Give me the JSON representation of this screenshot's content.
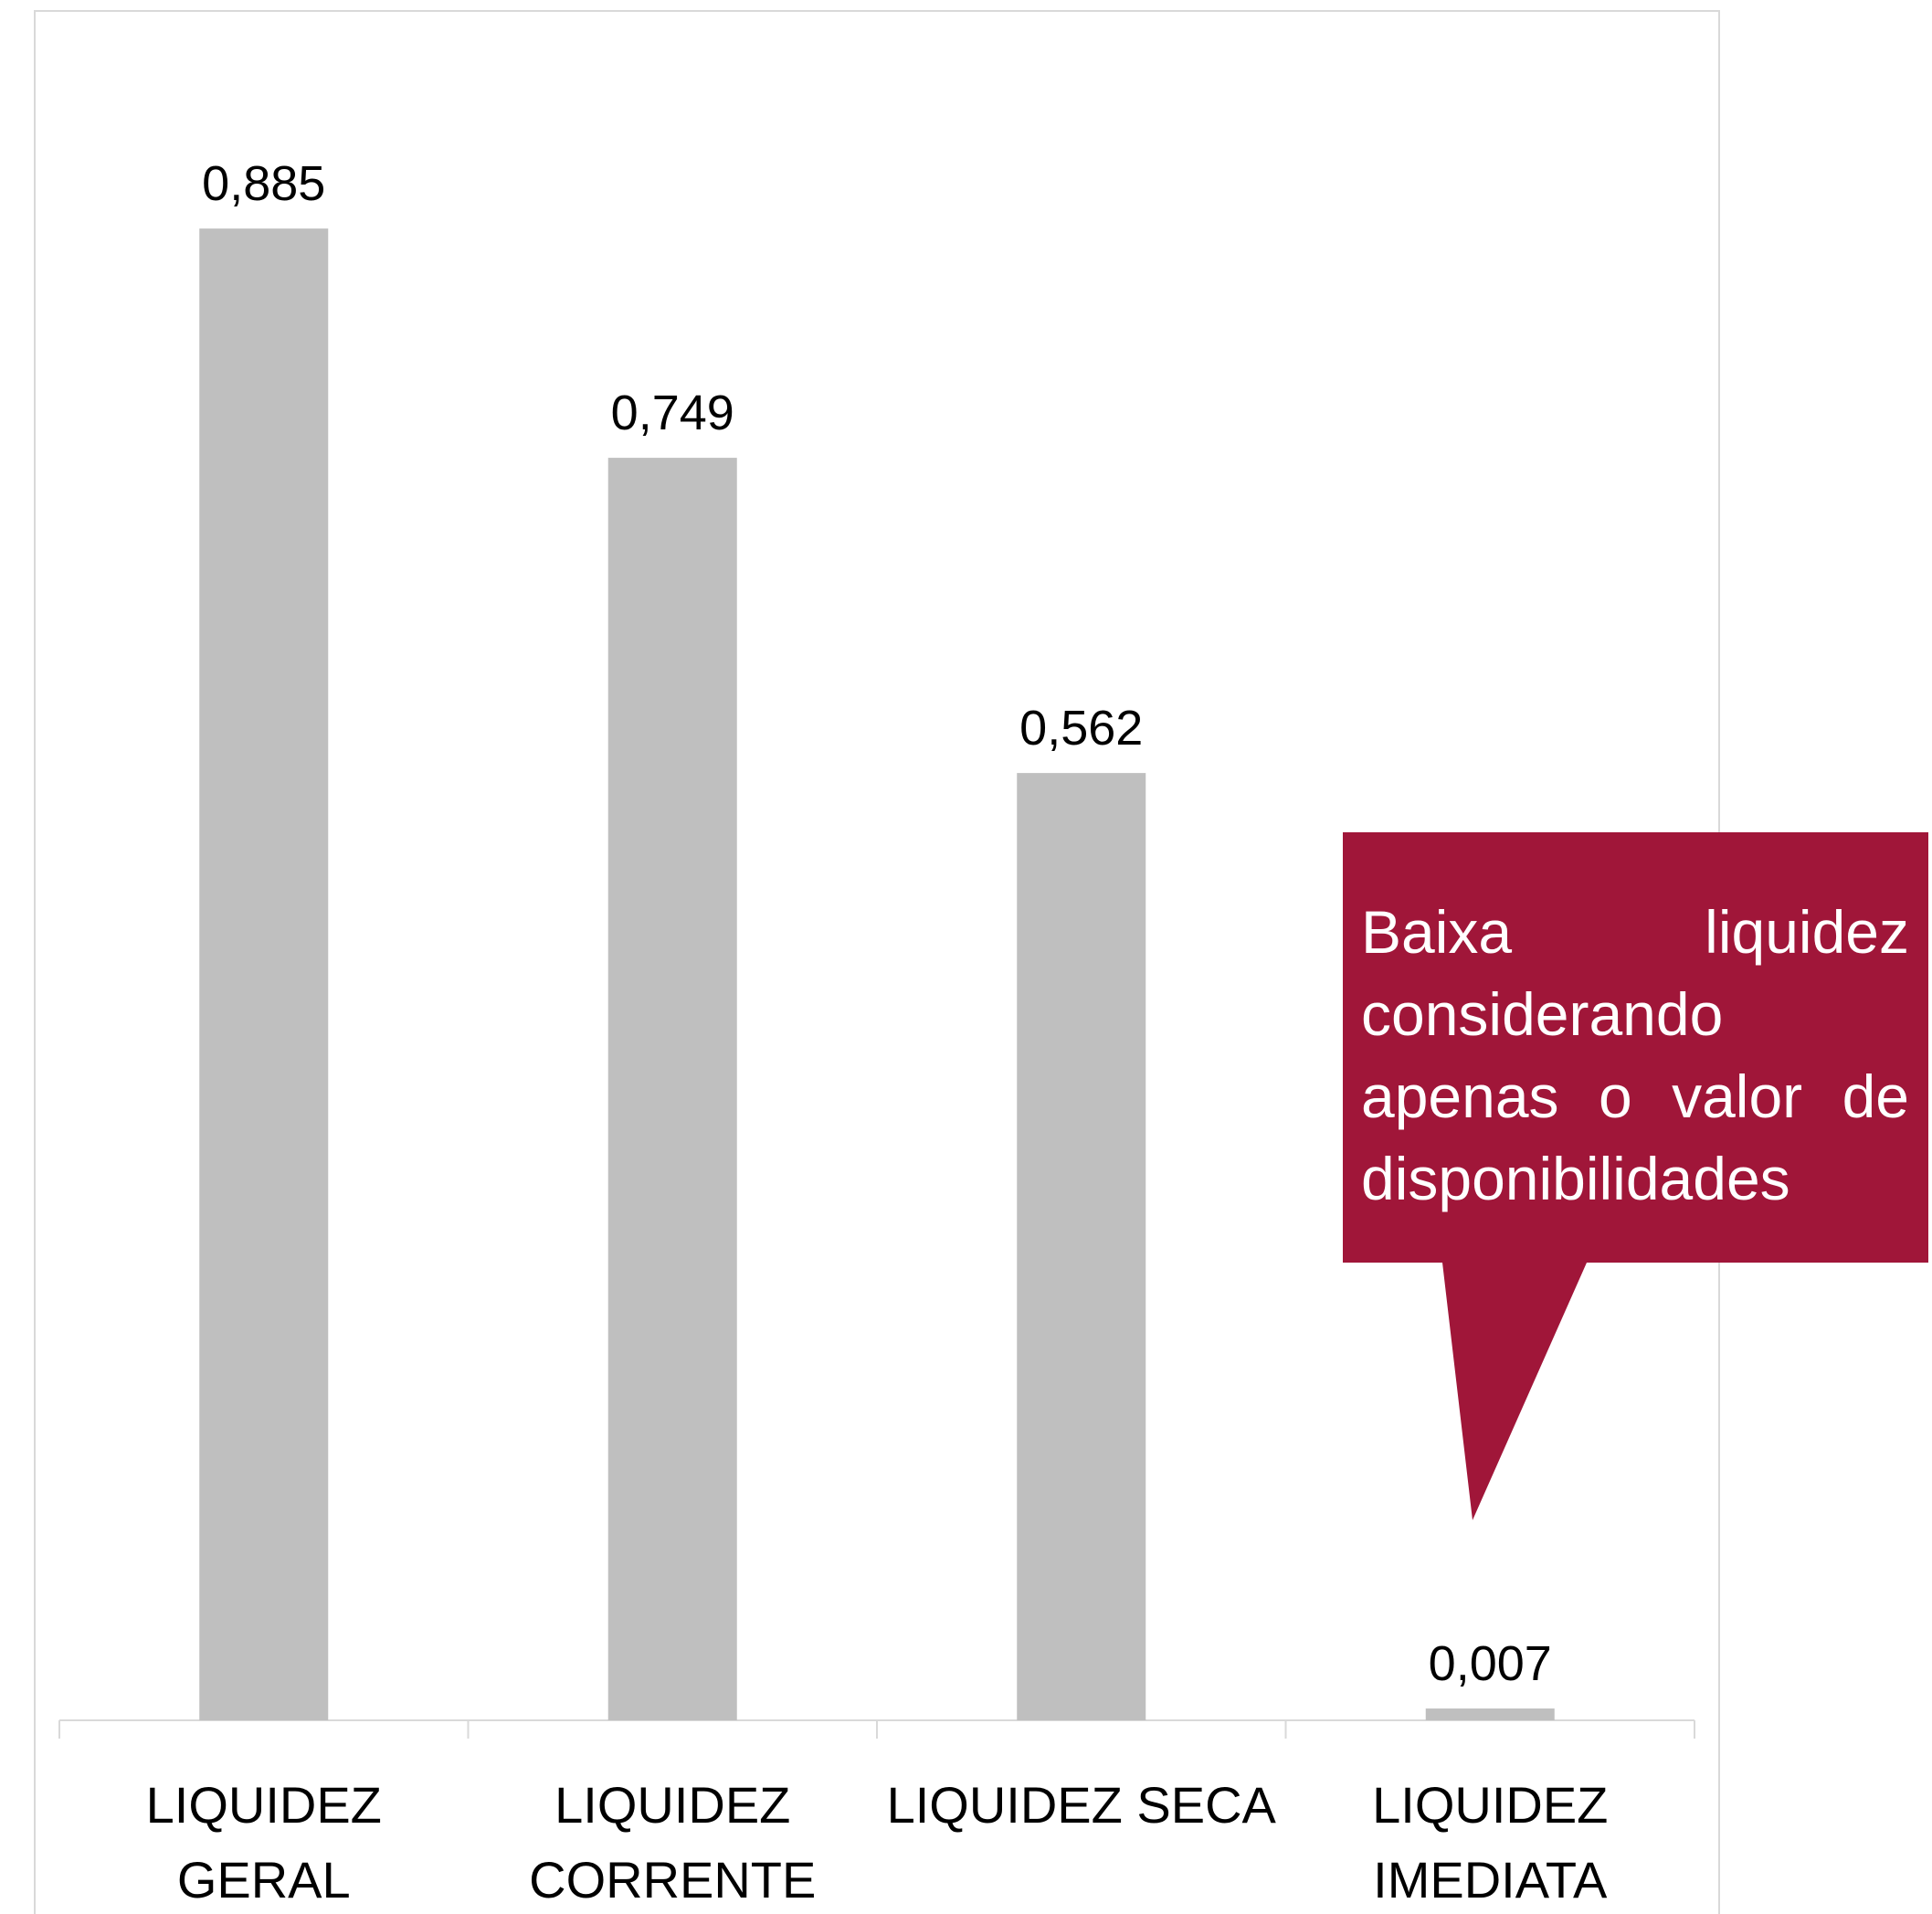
{
  "chart_data": {
    "type": "bar",
    "categories": [
      "LIQUIDEZ GERAL",
      "LIQUIDEZ CORRENTE",
      "LIQUIDEZ SECA",
      "LIQUIDEZ IMEDIATA"
    ],
    "values": [
      0.885,
      0.749,
      0.562,
      0.007
    ],
    "value_labels": [
      "0,885",
      "0,749",
      "0,562",
      "0,007"
    ],
    "color": "#bfbfbf",
    "annotation": "Baixa liquidez considerando apenas o valor de disponibilidades",
    "annotation_color": "#a01639"
  }
}
